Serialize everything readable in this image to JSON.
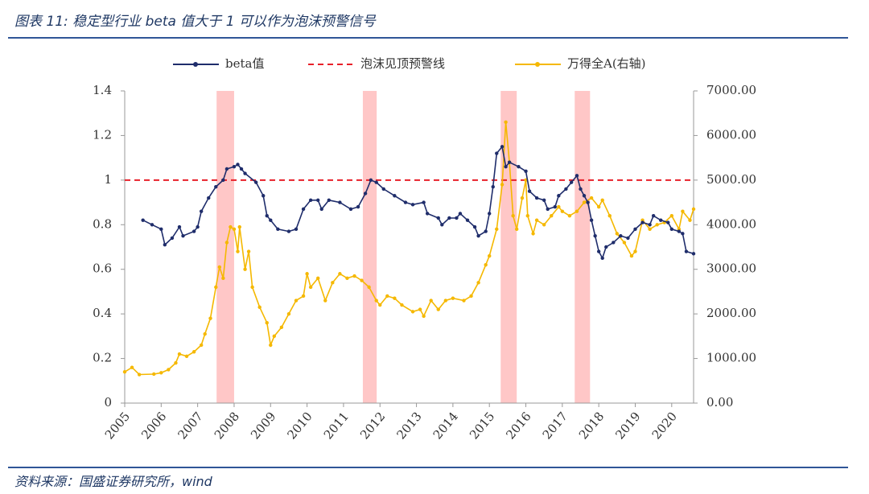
{
  "header": {
    "title": "图表 11: 稳定型行业 beta 值大于 1 可以作为泡沫预警信号"
  },
  "source": "资料来源：国盛证券研究所，wind",
  "chart_data": {
    "type": "line",
    "xlim": [
      2005,
      2020.6
    ],
    "xticks": [
      2005,
      2006,
      2007,
      2008,
      2009,
      2010,
      2011,
      2012,
      2013,
      2014,
      2015,
      2016,
      2017,
      2018,
      2019,
      2020
    ],
    "ylim": [
      0,
      1.4
    ],
    "yticks": [
      0,
      0.2,
      0.4,
      0.6,
      0.8,
      1,
      1.2,
      1.4
    ],
    "y2lim": [
      0,
      7000
    ],
    "y2ticks": [
      {
        "value": 0,
        "label": "0.00"
      },
      {
        "value": 1000,
        "label": "1000.00"
      },
      {
        "value": 2000,
        "label": "2000.00"
      },
      {
        "value": 3000,
        "label": "3000.00"
      },
      {
        "value": 4000,
        "label": "4000.00"
      },
      {
        "value": 5000,
        "label": "5000.00"
      },
      {
        "value": 6000,
        "label": "6000.00"
      },
      {
        "value": 7000,
        "label": "7000.00"
      }
    ],
    "bands": [
      [
        2007.52,
        2008.0
      ],
      [
        2011.53,
        2011.91
      ],
      [
        2015.31,
        2015.75
      ],
      [
        2017.34,
        2017.76
      ]
    ],
    "band_color": "#ffc7c7",
    "reference_line": {
      "name": "泡沫见顶预警线",
      "value": 1,
      "color": "#e8202a"
    },
    "series": [
      {
        "name": "beta值",
        "color": "#1f2d6b",
        "x": [
          2005.5,
          2005.75,
          2006.0,
          2006.1,
          2006.3,
          2006.5,
          2006.6,
          2006.9,
          2007.0,
          2007.1,
          2007.3,
          2007.5,
          2007.7,
          2007.8,
          2008.0,
          2008.1,
          2008.2,
          2008.3,
          2008.6,
          2008.8,
          2008.9,
          2009.0,
          2009.2,
          2009.5,
          2009.7,
          2009.9,
          2010.1,
          2010.3,
          2010.4,
          2010.6,
          2010.9,
          2011.2,
          2011.4,
          2011.6,
          2011.75,
          2011.9,
          2012.1,
          2012.4,
          2012.7,
          2012.9,
          2013.2,
          2013.3,
          2013.6,
          2013.7,
          2013.9,
          2014.1,
          2014.2,
          2014.4,
          2014.6,
          2014.7,
          2014.9,
          2015.0,
          2015.1,
          2015.2,
          2015.35,
          2015.45,
          2015.55,
          2015.8,
          2016.0,
          2016.1,
          2016.3,
          2016.5,
          2016.6,
          2016.8,
          2016.9,
          2017.1,
          2017.25,
          2017.4,
          2017.5,
          2017.6,
          2017.7,
          2017.8,
          2017.9,
          2018.0,
          2018.1,
          2018.2,
          2018.4,
          2018.6,
          2018.8,
          2019.0,
          2019.2,
          2019.4,
          2019.5,
          2019.7,
          2019.9,
          2020.0,
          2020.2,
          2020.3,
          2020.4,
          2020.6
        ],
        "values": [
          0.82,
          0.8,
          0.78,
          0.71,
          0.74,
          0.79,
          0.75,
          0.77,
          0.79,
          0.86,
          0.92,
          0.97,
          1.0,
          1.05,
          1.06,
          1.07,
          1.05,
          1.03,
          0.99,
          0.93,
          0.84,
          0.82,
          0.78,
          0.77,
          0.78,
          0.87,
          0.91,
          0.91,
          0.87,
          0.91,
          0.9,
          0.87,
          0.88,
          0.94,
          1.0,
          0.99,
          0.96,
          0.93,
          0.9,
          0.89,
          0.9,
          0.85,
          0.83,
          0.8,
          0.83,
          0.83,
          0.85,
          0.82,
          0.79,
          0.75,
          0.77,
          0.85,
          0.97,
          1.12,
          1.15,
          1.06,
          1.08,
          1.06,
          1.04,
          0.95,
          0.92,
          0.91,
          0.87,
          0.88,
          0.93,
          0.96,
          0.99,
          1.02,
          0.96,
          0.93,
          0.9,
          0.82,
          0.75,
          0.68,
          0.65,
          0.7,
          0.72,
          0.75,
          0.74,
          0.78,
          0.81,
          0.8,
          0.84,
          0.82,
          0.81,
          0.78,
          0.77,
          0.76,
          0.68,
          0.67
        ]
      },
      {
        "name": "万得全A(右轴)",
        "color": "#f5b800",
        "axis": "y2",
        "x": [
          2005.0,
          2005.2,
          2005.4,
          2005.8,
          2006.0,
          2006.2,
          2006.4,
          2006.5,
          2006.7,
          2006.9,
          2007.1,
          2007.2,
          2007.35,
          2007.5,
          2007.6,
          2007.7,
          2007.8,
          2007.9,
          2008.0,
          2008.1,
          2008.15,
          2008.3,
          2008.4,
          2008.5,
          2008.7,
          2008.9,
          2009.0,
          2009.1,
          2009.3,
          2009.5,
          2009.7,
          2009.9,
          2010.0,
          2010.1,
          2010.3,
          2010.5,
          2010.7,
          2010.9,
          2011.1,
          2011.3,
          2011.5,
          2011.7,
          2011.9,
          2012.0,
          2012.2,
          2012.4,
          2012.6,
          2012.9,
          2013.1,
          2013.2,
          2013.4,
          2013.6,
          2013.8,
          2014.0,
          2014.3,
          2014.5,
          2014.7,
          2014.9,
          2015.0,
          2015.2,
          2015.35,
          2015.45,
          2015.55,
          2015.65,
          2015.75,
          2015.9,
          2016.0,
          2016.05,
          2016.2,
          2016.3,
          2016.5,
          2016.7,
          2016.9,
          2017.0,
          2017.2,
          2017.4,
          2017.6,
          2017.8,
          2018.0,
          2018.1,
          2018.3,
          2018.5,
          2018.7,
          2018.9,
          2019.0,
          2019.2,
          2019.4,
          2019.6,
          2019.8,
          2020.0,
          2020.2,
          2020.3,
          2020.5,
          2020.6
        ],
        "values": [
          700,
          800,
          640,
          650,
          680,
          750,
          900,
          1100,
          1050,
          1150,
          1300,
          1550,
          1900,
          2600,
          3050,
          2800,
          3600,
          3950,
          3900,
          3400,
          3950,
          3000,
          3400,
          2600,
          2150,
          1800,
          1300,
          1500,
          1700,
          2000,
          2300,
          2400,
          2900,
          2600,
          2800,
          2300,
          2700,
          2900,
          2800,
          2850,
          2750,
          2600,
          2300,
          2200,
          2400,
          2350,
          2200,
          2050,
          2100,
          1950,
          2300,
          2100,
          2300,
          2350,
          2300,
          2400,
          2700,
          3100,
          3300,
          3900,
          4900,
          6300,
          5400,
          4200,
          3900,
          4600,
          5000,
          4200,
          3800,
          4100,
          4000,
          4200,
          4400,
          4300,
          4200,
          4300,
          4500,
          4600,
          4400,
          4550,
          4200,
          3800,
          3600,
          3300,
          3400,
          4100,
          3900,
          4000,
          4050,
          4200,
          3900,
          4300,
          4100,
          4350
        ]
      }
    ]
  }
}
